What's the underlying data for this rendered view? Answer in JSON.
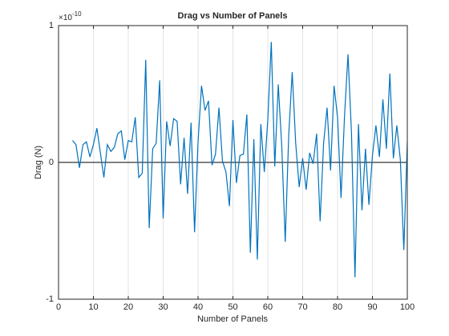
{
  "chart_data": {
    "type": "line",
    "title": "Drag vs Number of Panels",
    "xlabel": "Number of Panels",
    "ylabel": "Drag (N)",
    "y_multiplier": {
      "base": "×10",
      "exponent": "-10"
    },
    "x": [
      4,
      5,
      6,
      7,
      8,
      9,
      10,
      11,
      12,
      13,
      14,
      15,
      16,
      17,
      18,
      19,
      20,
      21,
      22,
      23,
      24,
      25,
      26,
      27,
      28,
      29,
      30,
      31,
      32,
      33,
      34,
      35,
      36,
      37,
      38,
      39,
      40,
      41,
      42,
      43,
      44,
      45,
      46,
      47,
      48,
      49,
      50,
      51,
      52,
      53,
      54,
      55,
      56,
      57,
      58,
      59,
      60,
      61,
      62,
      63,
      64,
      65,
      66,
      67,
      68,
      69,
      70,
      71,
      72,
      73,
      74,
      75,
      76,
      77,
      78,
      79,
      80,
      81,
      82,
      83,
      84,
      85,
      86,
      87,
      88,
      89,
      90,
      91,
      92,
      93,
      94,
      95,
      96,
      97,
      98,
      99,
      100
    ],
    "series": [
      {
        "name": "Drag",
        "color": "#0072bd",
        "values": [
          0.16,
          0.13,
          -0.04,
          0.13,
          0.15,
          0.04,
          0.13,
          0.25,
          0.07,
          -0.11,
          0.13,
          0.08,
          0.11,
          0.21,
          0.23,
          0.02,
          0.16,
          0.15,
          0.33,
          -0.11,
          -0.08,
          0.75,
          -0.48,
          0.1,
          0.14,
          0.6,
          -0.41,
          0.3,
          0.12,
          0.32,
          0.3,
          -0.16,
          0.18,
          -0.23,
          0.29,
          -0.51,
          0.15,
          0.56,
          0.38,
          0.45,
          -0.02,
          0.06,
          0.4,
          0.01,
          -0.07,
          -0.32,
          0.31,
          -0.15,
          0.05,
          0.06,
          0.35,
          -0.66,
          0.17,
          -0.71,
          0.28,
          -0.07,
          0.31,
          0.88,
          -0.03,
          0.57,
          0.12,
          -0.58,
          0.2,
          0.66,
          0.14,
          -0.18,
          0.03,
          -0.2,
          0.07,
          -0.01,
          0.21,
          -0.43,
          0.14,
          0.4,
          -0.06,
          0.56,
          0.33,
          -0.26,
          0.34,
          0.79,
          0.21,
          -0.84,
          0.28,
          -0.35,
          0.1,
          -0.31,
          0.05,
          0.27,
          0.04,
          0.46,
          0.1,
          0.65,
          0.03,
          0.27,
          0.02,
          -0.64,
          0.15
        ]
      }
    ],
    "reference_line": 0,
    "xlim": [
      0,
      100
    ],
    "xticks": [
      0,
      10,
      20,
      30,
      40,
      50,
      60,
      70,
      80,
      90,
      100
    ],
    "ylim": [
      -1,
      1
    ],
    "yticks": [
      -1,
      0,
      1
    ],
    "xgrid": true
  }
}
